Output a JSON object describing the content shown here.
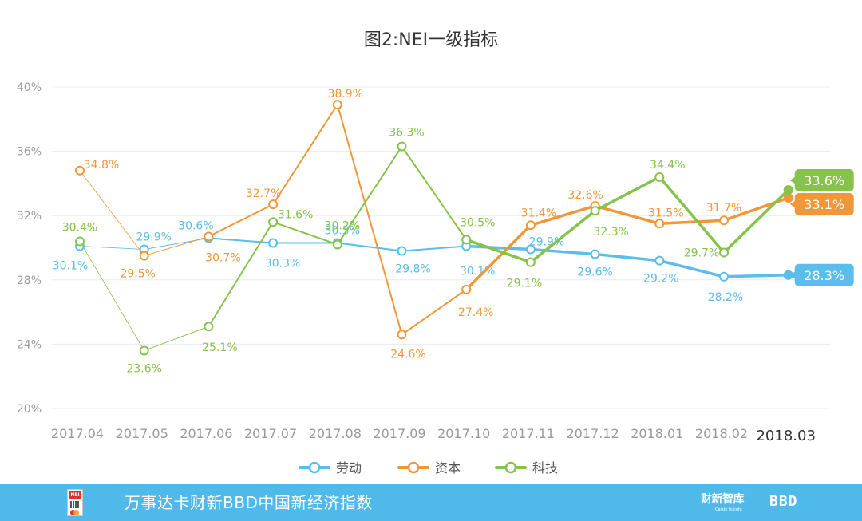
{
  "chart_data": {
    "type": "line",
    "title": "图2:NEI一级指标",
    "categories": [
      "2017.04",
      "2017.05",
      "2017.06",
      "2017.07",
      "2017.08",
      "2017.09",
      "2017.10",
      "2017.11",
      "2017.12",
      "2018.01",
      "2018.02",
      "2018.03"
    ],
    "y_ticks": [
      "20%",
      "24%",
      "28%",
      "32%",
      "36%",
      "40%"
    ],
    "ylim": [
      20,
      40
    ],
    "grid": true,
    "legend_position": "bottom",
    "series": [
      {
        "name": "劳动",
        "color": "#5bbde9",
        "values": [
          30.1,
          29.9,
          30.6,
          30.3,
          30.3,
          29.8,
          30.1,
          29.9,
          29.6,
          29.2,
          28.2,
          28.3
        ],
        "labels": [
          "30.1%",
          "29.9%",
          "30.6%",
          "30.3%",
          "30.3%",
          "29.8%",
          "30.1%",
          "29.9%",
          "29.6%",
          "29.2%",
          "28.2%",
          "28.3%"
        ]
      },
      {
        "name": "资本",
        "color": "#f0973a",
        "values": [
          34.8,
          29.5,
          30.7,
          32.7,
          38.9,
          24.6,
          27.4,
          31.4,
          32.6,
          31.5,
          31.7,
          33.1
        ],
        "labels": [
          "34.8%",
          "29.5%",
          "30.7%",
          "32.7%",
          "38.9%",
          "24.6%",
          "27.4%",
          "31.4%",
          "32.6%",
          "31.5%",
          "31.7%",
          "33.1%"
        ]
      },
      {
        "name": "科技",
        "color": "#86c34a",
        "values": [
          30.4,
          23.6,
          25.1,
          31.6,
          30.2,
          36.3,
          30.5,
          29.1,
          32.3,
          34.4,
          29.7,
          33.6
        ],
        "labels": [
          "30.4%",
          "23.6%",
          "25.1%",
          "31.6%",
          "30.2%",
          "36.3%",
          "30.5%",
          "29.1%",
          "32.3%",
          "34.4%",
          "29.7%",
          "33.6%"
        ]
      }
    ]
  },
  "footer": {
    "title": "万事达卡财新BBD中国新经济指数",
    "logo_text": "NEI",
    "brand_caixin": "财新智库",
    "brand_caixin_sub": "Caixin Insight",
    "brand_bbd": "BBD"
  }
}
